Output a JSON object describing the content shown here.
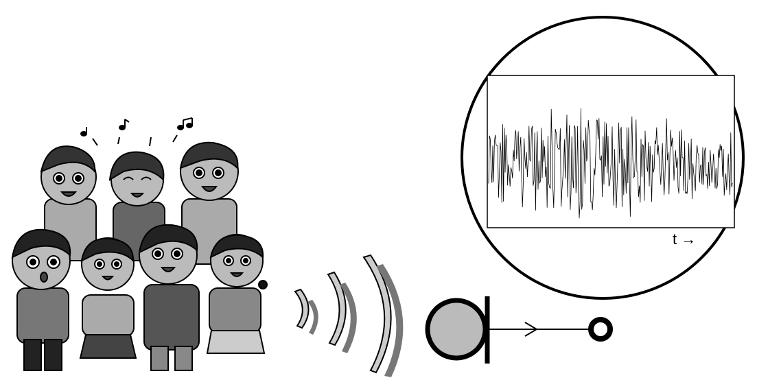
{
  "waveform_panel": {
    "axis_label": "t →"
  }
}
